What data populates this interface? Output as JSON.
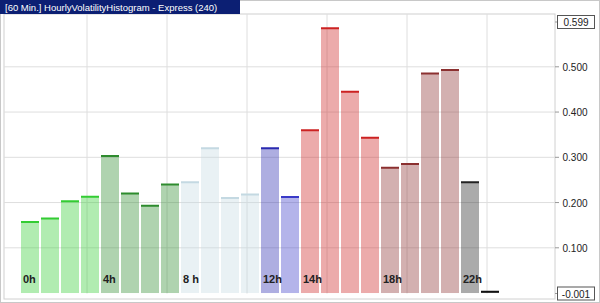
{
  "chart_data": {
    "type": "bar",
    "title": "[60 Min.] HourlyVolatilityHistogram - Express (240)",
    "categories": [
      "0h",
      null,
      null,
      null,
      "4h",
      null,
      null,
      null,
      "8 h",
      null,
      null,
      null,
      "12h",
      null,
      "14h",
      null,
      null,
      null,
      "18h",
      null,
      null,
      null,
      "22h",
      null
    ],
    "values": [
      0.157,
      0.165,
      0.203,
      0.213,
      0.303,
      0.22,
      0.193,
      0.24,
      0.245,
      0.32,
      0.21,
      0.218,
      0.32,
      0.212,
      0.36,
      0.585,
      0.445,
      0.343,
      0.277,
      0.285,
      0.485,
      0.493,
      0.245,
      0.003
    ],
    "colors": [
      "#33cc33",
      "#33cc33",
      "#33cc33",
      "#33cc33",
      "#2e8b2e",
      "#2e8b2e",
      "#2e8b2e",
      "#2e8b2e",
      "#c4d9e2",
      "#c4d9e2",
      "#c4d9e2",
      "#c4d9e2",
      "#2a2ab0",
      "#3a3ac8",
      "#cc2222",
      "#cc2222",
      "#cc2222",
      "#cc2222",
      "#8b3030",
      "#8b3030",
      "#8b3030",
      "#8b3030",
      "#222222",
      "#111111"
    ],
    "ylim": [
      -0.001,
      0.599
    ],
    "yticks": [
      {
        "value": -0.001,
        "label": "-0.001"
      },
      {
        "value": 0.1,
        "label": "0.100"
      },
      {
        "value": 0.2,
        "label": "0.200"
      },
      {
        "value": 0.3,
        "label": "0.300"
      },
      {
        "value": 0.4,
        "label": "0.400"
      },
      {
        "value": 0.5,
        "label": "0.500"
      },
      {
        "value": 0.599,
        "label": "0.599"
      }
    ],
    "grid": true
  }
}
